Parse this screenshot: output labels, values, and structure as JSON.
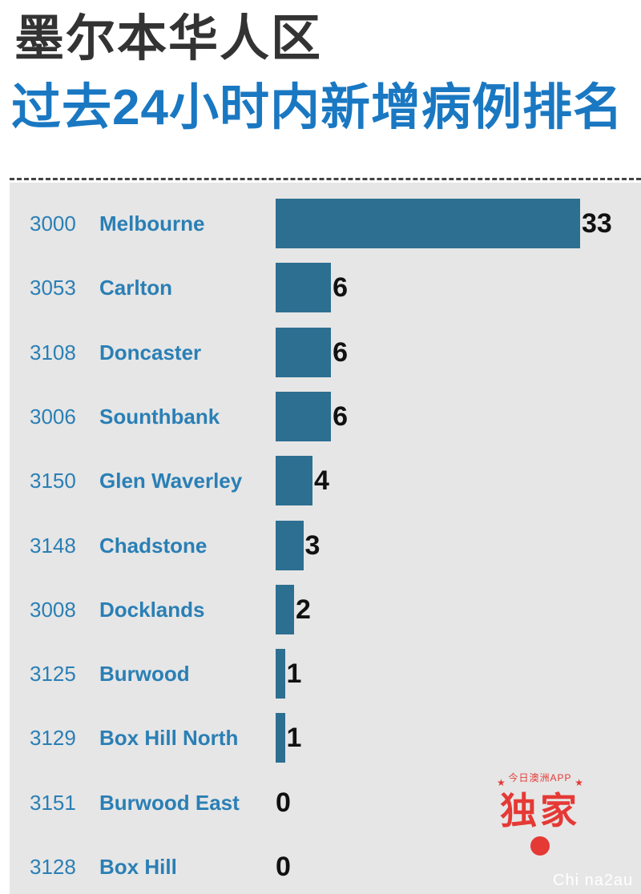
{
  "header": {
    "title_line1": "墨尔本华人区",
    "title_line2": "过去24小时内新增病例排名"
  },
  "colors": {
    "title_dark": "#333333",
    "title_blue": "#1a78c2",
    "label_blue": "#2a7fb5",
    "bar": "#2d6f91",
    "panel_bg": "#e6e6e6",
    "badge_red": "#e53935"
  },
  "chart_data": {
    "type": "bar",
    "orientation": "horizontal",
    "title": "过去24小时内新增病例排名",
    "xlim": [
      0,
      33
    ],
    "grid": false,
    "categories": [
      {
        "code": "3000",
        "name": "Melbourne",
        "value": 33
      },
      {
        "code": "3053",
        "name": "Carlton",
        "value": 6
      },
      {
        "code": "3108",
        "name": "Doncaster",
        "value": 6
      },
      {
        "code": "3006",
        "name": "Sounthbank",
        "value": 6
      },
      {
        "code": "3150",
        "name": "Glen Waverley",
        "value": 4
      },
      {
        "code": "3148",
        "name": "Chadstone",
        "value": 3
      },
      {
        "code": "3008",
        "name": "Docklands",
        "value": 2
      },
      {
        "code": "3125",
        "name": "Burwood",
        "value": 1
      },
      {
        "code": "3129",
        "name": "Box Hill North",
        "value": 1
      },
      {
        "code": "3151",
        "name": "Burwood East",
        "value": 0
      },
      {
        "code": "3128",
        "name": "Box Hill",
        "value": 0
      }
    ]
  },
  "badge": {
    "sub_text": "今日澳洲APP",
    "main_text": "独家",
    "icon": "app-logo-icon"
  },
  "watermark": "Chi na2au"
}
